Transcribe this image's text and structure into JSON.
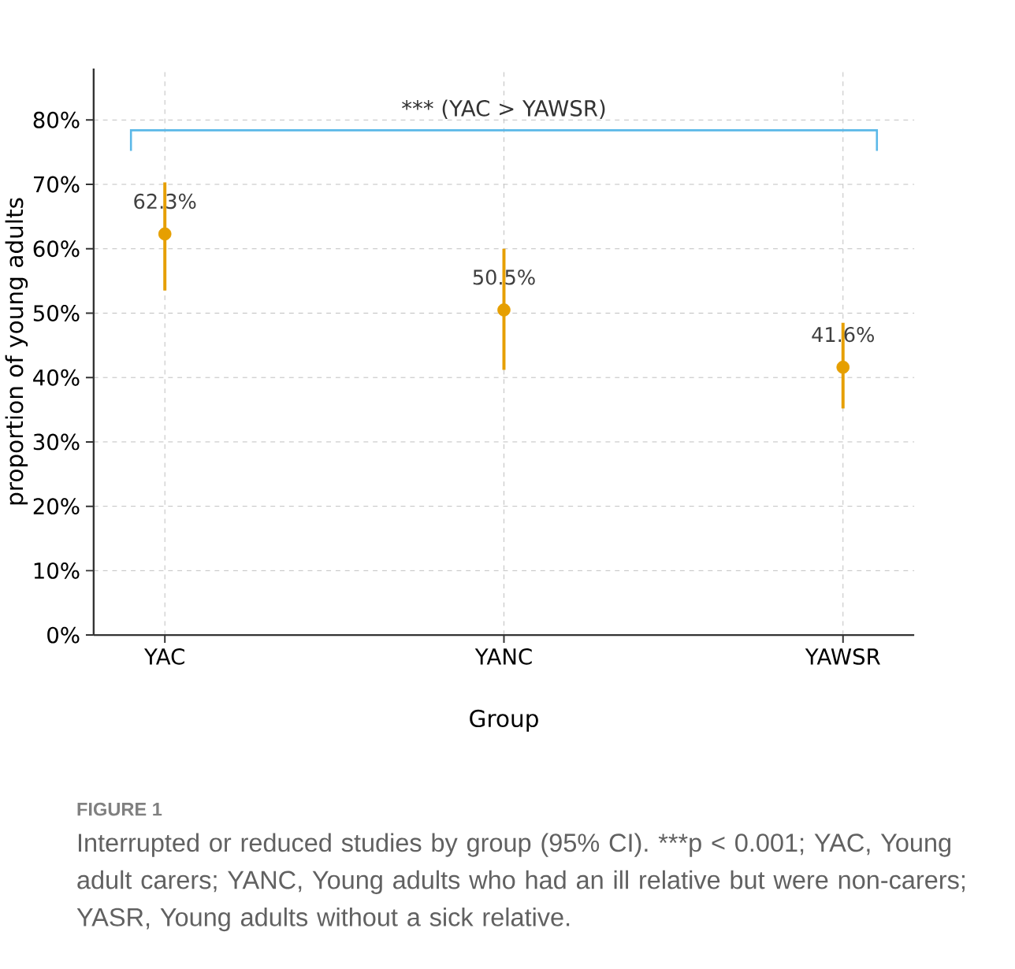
{
  "chart_data": {
    "type": "scatter",
    "xlabel": "Group",
    "ylabel": "proportion of young adults",
    "categories": [
      "YAC",
      "YANC",
      "YAWSR"
    ],
    "values": [
      62.3,
      50.5,
      41.6
    ],
    "value_labels": [
      "62.3%",
      "50.5%",
      "41.6%"
    ],
    "errors": [
      [
        53.5,
        70.3
      ],
      [
        41.2,
        60.0
      ],
      [
        35.2,
        48.5
      ]
    ],
    "color": "#e69f00",
    "marker": "circle",
    "grid": true,
    "ylim": [
      0,
      88
    ],
    "yticks": [
      {
        "value": 0,
        "label": "0%"
      },
      {
        "value": 10,
        "label": "10%"
      },
      {
        "value": 20,
        "label": "20%"
      },
      {
        "value": 30,
        "label": "30%"
      },
      {
        "value": 40,
        "label": "40%"
      },
      {
        "value": 50,
        "label": "50%"
      },
      {
        "value": 60,
        "label": "60%"
      },
      {
        "value": 70,
        "label": "70%"
      },
      {
        "value": 80,
        "label": "80%"
      }
    ],
    "annotations": [
      "*** (YAC > YAWSR)",
      "FIGURE 1",
      "Interrupted or reduced studies by group (95% CI). ***p < 0.001; YAC, Young adult carers; YANC, Young adults who had an ill relative but were non-carers; YASR, Young adults without a sick relative."
    ]
  }
}
